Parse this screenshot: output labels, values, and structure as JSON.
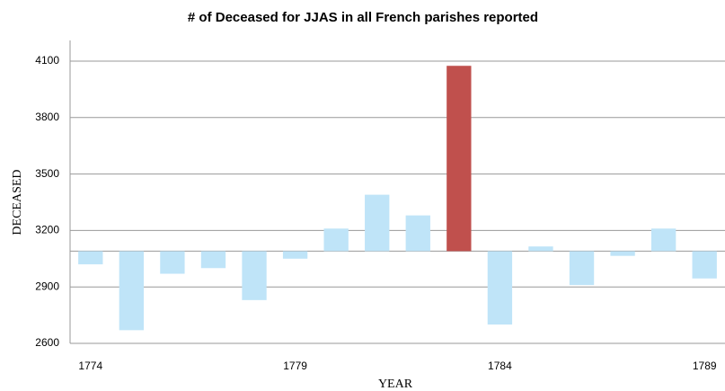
{
  "chart_data": {
    "type": "bar",
    "title": "# of Deceased for JJAS in all French parishes reported",
    "xlabel": "YEAR",
    "ylabel": "DECEASED",
    "categories": [
      "1774",
      null,
      null,
      null,
      null,
      "1779",
      null,
      null,
      null,
      null,
      "1784",
      null,
      null,
      null,
      null,
      "1789"
    ],
    "values": [
      3020,
      2670,
      2970,
      3000,
      2830,
      3050,
      3210,
      3390,
      3280,
      4075,
      2700,
      3115,
      2910,
      3065,
      3210,
      2945
    ],
    "colors": [
      "#bfe4f8",
      "#bfe4f8",
      "#bfe4f8",
      "#bfe4f8",
      "#bfe4f8",
      "#bfe4f8",
      "#bfe4f8",
      "#bfe4f8",
      "#bfe4f8",
      "#c0504d",
      "#bfe4f8",
      "#bfe4f8",
      "#bfe4f8",
      "#bfe4f8",
      "#bfe4f8",
      "#bfe4f8"
    ],
    "baseline": 3090,
    "ylim": [
      2600,
      4100
    ],
    "yticks": [
      2600,
      2900,
      3200,
      3500,
      3800,
      4100
    ],
    "grid": true
  }
}
